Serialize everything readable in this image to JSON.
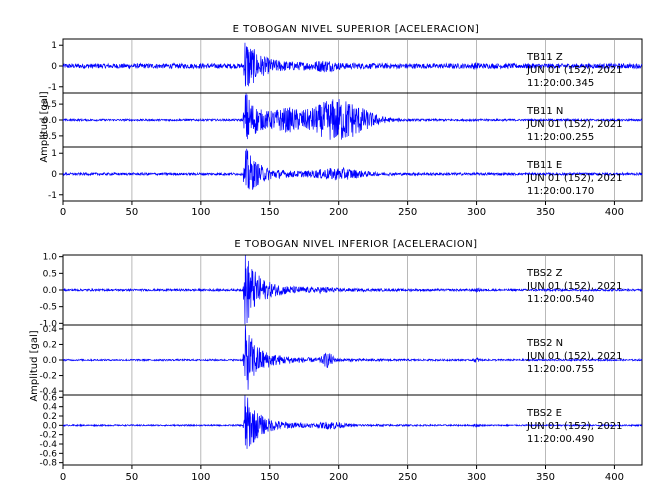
{
  "chart_data": [
    {
      "type": "line",
      "title": "E TOBOGAN NIVEL SUPERIOR [ACELERACION]",
      "ylabel": "Amplitud [gal]",
      "xlim": [
        0,
        420
      ],
      "x_ticks": [
        0,
        50,
        100,
        150,
        200,
        250,
        300,
        350,
        400
      ],
      "event_onset_s": 132,
      "panels": [
        {
          "station": "TB11",
          "component": "Z",
          "date": "JUN 01 (152), 2021",
          "time": "11:20:00.345",
          "ylim": [
            -1.3,
            1.3
          ],
          "y_ticks": [
            1,
            0,
            -1
          ],
          "y_tick_labels": [
            "1",
            "0",
            "-1"
          ],
          "noise_level": 0.12,
          "peak": 1.2,
          "bursts": [
            {
              "at": 190,
              "amp": 0.15,
              "width": 8
            },
            {
              "at": 300,
              "amp": 0.06,
              "width": 3
            }
          ]
        },
        {
          "station": "TB11",
          "component": "N",
          "date": "JUN 01 (152), 2021",
          "time": "11:20:00.255",
          "ylim": [
            -0.85,
            0.85
          ],
          "y_ticks": [
            0.5,
            0,
            -0.5
          ],
          "y_tick_labels": [
            "0.5",
            "0.0",
            "-0.5"
          ],
          "noise_level": 0.03,
          "peak": 0.8,
          "bursts": [
            {
              "at": 200,
              "amp": 0.65,
              "width": 22
            },
            {
              "at": 162,
              "amp": 0.25,
              "width": 12
            }
          ]
        },
        {
          "station": "TB11",
          "component": "E",
          "date": "JUN 01 (152), 2021",
          "time": "11:20:00.170",
          "ylim": [
            -1.3,
            1.3
          ],
          "y_ticks": [
            1,
            0,
            -1
          ],
          "y_tick_labels": [
            "1",
            "0",
            "-1"
          ],
          "noise_level": 0.06,
          "peak": 1.1,
          "bursts": [
            {
              "at": 200,
              "amp": 0.22,
              "width": 18
            }
          ]
        }
      ]
    },
    {
      "type": "line",
      "title": "E TOBOGAN NIVEL INFERIOR [ACELERACION]",
      "ylabel": "Amplitud [gal]",
      "xlim": [
        0,
        420
      ],
      "x_ticks": [
        0,
        50,
        100,
        150,
        200,
        250,
        300,
        350,
        400
      ],
      "event_onset_s": 132,
      "panels": [
        {
          "station": "TBS2",
          "component": "Z",
          "date": "JUN 01 (152), 2021",
          "time": "11:20:00.540",
          "ylim": [
            -1.05,
            1.05
          ],
          "y_ticks": [
            1.0,
            0.5,
            0.0,
            -0.5,
            -1.0
          ],
          "y_tick_labels": [
            "1.0",
            "0.5",
            "0.0",
            "-0.5",
            "-1.0"
          ],
          "noise_level": 0.03,
          "peak": 1.0,
          "bursts": [
            {
              "at": 190,
              "amp": 0.04,
              "width": 6
            },
            {
              "at": 300,
              "amp": 0.03,
              "width": 3
            }
          ]
        },
        {
          "station": "TBS2",
          "component": "N",
          "date": "JUN 01 (152), 2021",
          "time": "11:20:00.755",
          "ylim": [
            -0.45,
            0.45
          ],
          "y_ticks": [
            0.4,
            0.2,
            0.0,
            -0.2,
            -0.4
          ],
          "y_tick_labels": [
            "0.4",
            "0.2",
            "0.0",
            "-0.2",
            "-0.4"
          ],
          "noise_level": 0.01,
          "peak": 0.4,
          "bursts": [
            {
              "at": 192,
              "amp": 0.08,
              "width": 4
            },
            {
              "at": 300,
              "amp": 0.03,
              "width": 2
            }
          ]
        },
        {
          "station": "TBS2",
          "component": "E",
          "date": "JUN 01 (152), 2021",
          "time": "11:20:00.490",
          "ylim": [
            -0.85,
            0.65
          ],
          "y_ticks": [
            0.6,
            0.4,
            0.2,
            0.0,
            -0.2,
            -0.4,
            -0.6,
            -0.8
          ],
          "y_tick_labels": [
            "0.6",
            "0.4",
            "0.2",
            "0.0",
            "-0.2",
            "-0.4",
            "-0.6",
            "-0.8"
          ],
          "noise_level": 0.015,
          "peak": 0.6,
          "bursts": [
            {
              "at": 195,
              "amp": 0.06,
              "width": 8
            },
            {
              "at": 300,
              "amp": 0.03,
              "width": 2
            }
          ]
        }
      ]
    }
  ],
  "colors": {
    "trace": "#0000ff",
    "axis": "#000000",
    "grid": "#8a8a8a",
    "background": "#ffffff"
  }
}
